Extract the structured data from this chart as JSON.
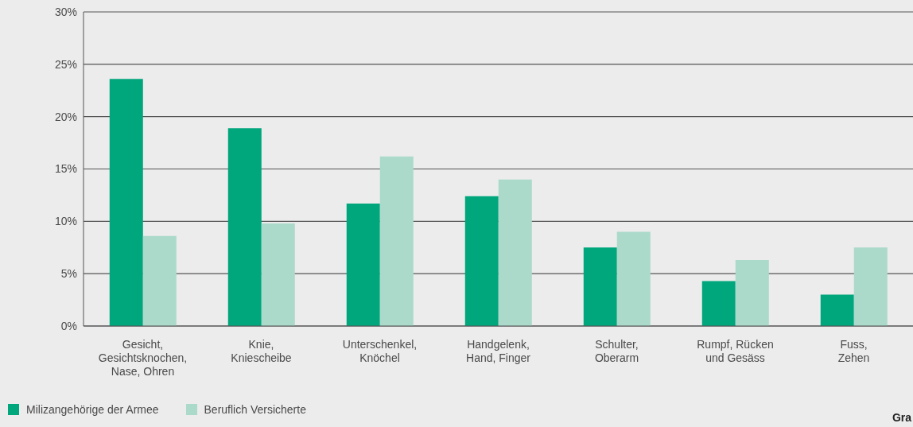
{
  "chart_data": {
    "type": "bar",
    "categories": [
      "Gesicht,\nGesichtsknochen,\nNase, Ohren",
      "Knie,\nKniescheibe",
      "Unterschenkel,\nKnöchel",
      "Handgelenk,\nHand, Finger",
      "Schulter,\nOberarm",
      "Rumpf, Rücken\nund Gesäss",
      "Fuss,\nZehen"
    ],
    "series": [
      {
        "name": "Milizangehörige der Armee",
        "color": "#00a67c",
        "values": [
          23.6,
          18.9,
          11.7,
          12.4,
          7.5,
          4.3,
          3.0
        ]
      },
      {
        "name": "Beruflich Versicherte",
        "color": "#abdacb",
        "values": [
          8.6,
          9.8,
          16.2,
          14.0,
          9.0,
          6.3,
          7.5
        ]
      }
    ],
    "ylim": [
      0,
      30
    ],
    "yticks": [
      {
        "value": 0,
        "label": "0%"
      },
      {
        "value": 5,
        "label": "5%"
      },
      {
        "value": 10,
        "label": "10%"
      },
      {
        "value": 15,
        "label": "15%"
      },
      {
        "value": 20,
        "label": "20%"
      },
      {
        "value": 25,
        "label": "25%"
      },
      {
        "value": 30,
        "label": "30%"
      }
    ],
    "grid": "y",
    "legend": "bottom left",
    "annotations": [
      "Gra"
    ]
  }
}
